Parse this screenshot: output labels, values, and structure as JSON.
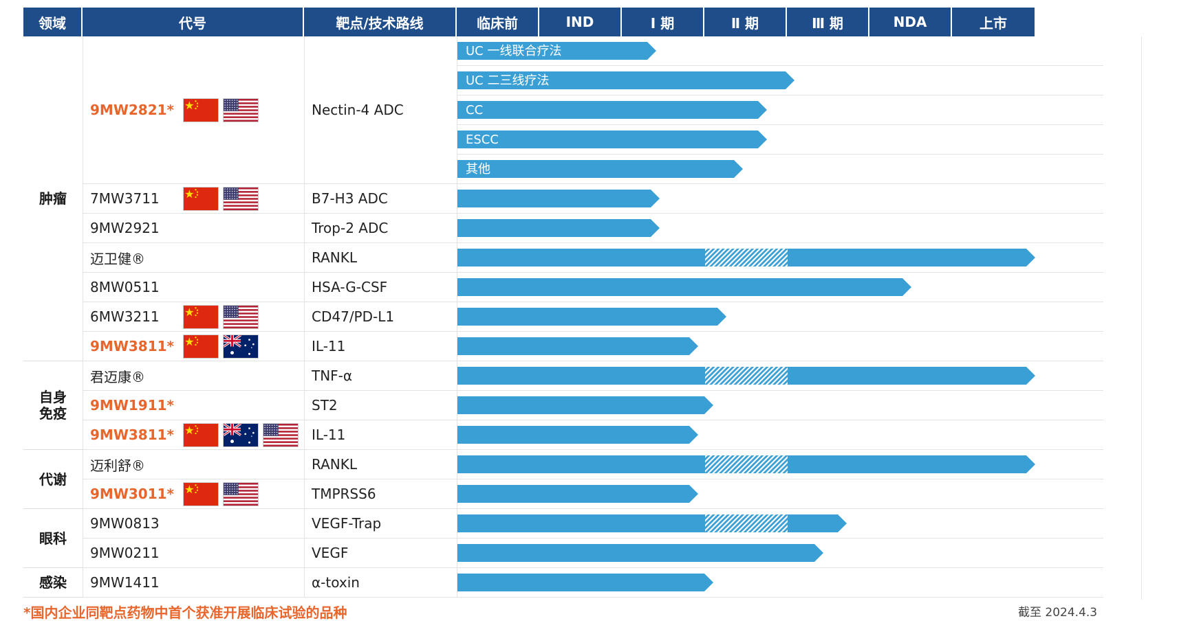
{
  "headers": {
    "domain": "领域",
    "code": "代号",
    "target": "靶点/技术路线",
    "stages": [
      "临床前",
      "IND",
      "Ⅰ 期",
      "Ⅱ 期",
      "Ⅲ 期",
      "NDA",
      "上市"
    ]
  },
  "domains": [
    {
      "name": "肿瘤",
      "start_row": 0,
      "end_row": 10
    },
    {
      "name": "自身\n免疫",
      "start_row": 11,
      "end_row": 13
    },
    {
      "name": "代谢",
      "start_row": 14,
      "end_row": 15
    },
    {
      "name": "眼科",
      "start_row": 16,
      "end_row": 17
    },
    {
      "name": "感染",
      "start_row": 18,
      "end_row": 18
    }
  ],
  "programs": [
    {
      "code": "9MW2821*",
      "highlight": true,
      "flags": [
        "cn-flag",
        "us-flag"
      ],
      "target": "Nectin-4 ADC",
      "start_row": 0,
      "end_row": 4
    },
    {
      "code": "7MW3711",
      "highlight": false,
      "flags": [
        "cn-flag",
        "us-flag"
      ],
      "target": "B7-H3 ADC",
      "start_row": 5,
      "end_row": 5
    },
    {
      "code": "9MW2921",
      "highlight": false,
      "flags": [],
      "target": "Trop-2 ADC",
      "start_row": 6,
      "end_row": 6
    },
    {
      "code": "迈卫健®",
      "highlight": false,
      "flags": [],
      "target": "RANKL",
      "start_row": 7,
      "end_row": 7
    },
    {
      "code": "8MW0511",
      "highlight": false,
      "flags": [],
      "target": "HSA-G-CSF",
      "start_row": 8,
      "end_row": 8
    },
    {
      "code": "6MW3211",
      "highlight": false,
      "flags": [
        "cn-flag",
        "us-flag"
      ],
      "target": "CD47/PD-L1",
      "start_row": 9,
      "end_row": 9
    },
    {
      "code": "9MW3811*",
      "highlight": true,
      "flags": [
        "cn-flag",
        "au-flag"
      ],
      "target": "IL-11",
      "start_row": 10,
      "end_row": 10
    },
    {
      "code": "君迈康®",
      "highlight": false,
      "flags": [],
      "target": "TNF-α",
      "start_row": 11,
      "end_row": 11
    },
    {
      "code": "9MW1911*",
      "highlight": true,
      "flags": [],
      "target": "ST2",
      "start_row": 12,
      "end_row": 12
    },
    {
      "code": "9MW3811*",
      "highlight": true,
      "flags": [
        "cn-flag",
        "au-flag",
        "us-flag"
      ],
      "target": "IL-11",
      "start_row": 13,
      "end_row": 13
    },
    {
      "code": "迈利舒®",
      "highlight": false,
      "flags": [],
      "target": "RANKL",
      "start_row": 14,
      "end_row": 14
    },
    {
      "code": "9MW3011*",
      "highlight": true,
      "flags": [
        "cn-flag",
        "us-flag"
      ],
      "target": "TMPRSS6",
      "start_row": 15,
      "end_row": 15
    },
    {
      "code": "9MW0813",
      "highlight": false,
      "flags": [],
      "target": "VEGF-Trap",
      "start_row": 16,
      "end_row": 16
    },
    {
      "code": "9MW0211",
      "highlight": false,
      "flags": [],
      "target": "VEGF",
      "start_row": 17,
      "end_row": 17
    },
    {
      "code": "9MW1411",
      "highlight": false,
      "flags": [],
      "target": "α-toxin",
      "start_row": 18,
      "end_row": 18
    }
  ],
  "tracks": [
    {
      "label": "UC 一线联合疗法",
      "progress": 2.41,
      "hatch": null
    },
    {
      "label": "UC 二三线疗法",
      "progress": 4.08,
      "hatch": null
    },
    {
      "label": "CC",
      "progress": 3.75,
      "hatch": null
    },
    {
      "label": "ESCC",
      "progress": 3.75,
      "hatch": null
    },
    {
      "label": "其他",
      "progress": 3.46,
      "hatch": null
    },
    {
      "label": "",
      "progress": 2.45,
      "hatch": null
    },
    {
      "label": "",
      "progress": 2.45,
      "hatch": null
    },
    {
      "label": "",
      "progress": 7.0,
      "hatch": [
        3,
        4
      ]
    },
    {
      "label": "",
      "progress": 5.5,
      "hatch": null
    },
    {
      "label": "",
      "progress": 3.26,
      "hatch": null
    },
    {
      "label": "",
      "progress": 2.92,
      "hatch": null
    },
    {
      "label": "",
      "progress": 7.0,
      "hatch": [
        3,
        4
      ]
    },
    {
      "label": "",
      "progress": 3.1,
      "hatch": null
    },
    {
      "label": "",
      "progress": 2.92,
      "hatch": null
    },
    {
      "label": "",
      "progress": 7.0,
      "hatch": [
        3,
        4
      ]
    },
    {
      "label": "",
      "progress": 2.92,
      "hatch": null
    },
    {
      "label": "",
      "progress": 4.72,
      "hatch": [
        3,
        4
      ]
    },
    {
      "label": "",
      "progress": 4.43,
      "hatch": null
    },
    {
      "label": "",
      "progress": 3.1,
      "hatch": null
    }
  ],
  "footnote": "*国内企业同靶点药物中首个获准开展临床试验的品种",
  "date_note": "截至 2024.4.3",
  "colors": {
    "header": "#1f4d8a",
    "bar": "#3a9fd4",
    "highlight": "#e8662c"
  }
}
